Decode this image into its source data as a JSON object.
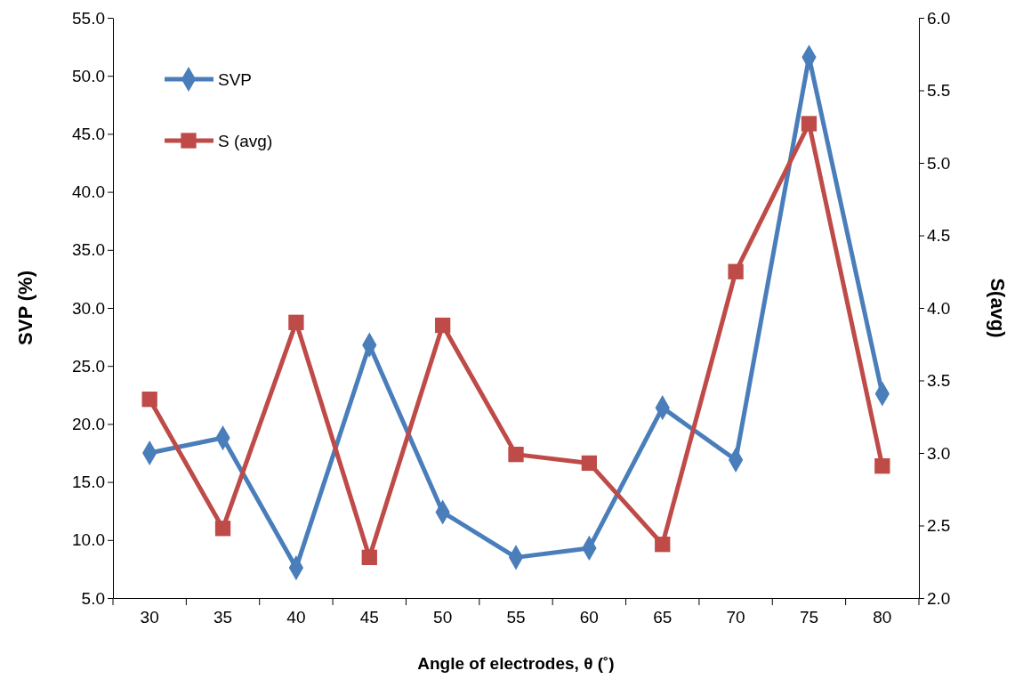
{
  "chart_data": {
    "type": "line",
    "xlabel": "Angle of electrodes, θ (˚)",
    "ylabel": "SVP (%)",
    "y2label": "S(avg)",
    "categories": [
      "30",
      "35",
      "40",
      "45",
      "50",
      "55",
      "60",
      "65",
      "70",
      "75",
      "80"
    ],
    "series": [
      {
        "name": "SVP",
        "color": "#4a7ebb",
        "marker": "diamond",
        "values": [
          17.5,
          18.8,
          7.6,
          26.8,
          12.4,
          8.5,
          9.3,
          21.4,
          16.9,
          51.6,
          22.6
        ]
      },
      {
        "name": "S (avg)",
        "color": "#be4b48",
        "marker": "square",
        "axis": "y2",
        "values": [
          3.37,
          2.48,
          3.9,
          2.28,
          3.88,
          2.99,
          2.93,
          2.37,
          4.25,
          5.27,
          2.91
        ]
      }
    ],
    "ylim": [
      5,
      55
    ],
    "yticks": [
      {
        "value": 5,
        "label": "5.0"
      },
      {
        "value": 10,
        "label": "10.0"
      },
      {
        "value": 15,
        "label": "15.0"
      },
      {
        "value": 20,
        "label": "20.0"
      },
      {
        "value": 25,
        "label": "25.0"
      },
      {
        "value": 30,
        "label": "30.0"
      },
      {
        "value": 35,
        "label": "35.0"
      },
      {
        "value": 40,
        "label": "40.0"
      },
      {
        "value": 45,
        "label": "45.0"
      },
      {
        "value": 50,
        "label": "50.0"
      },
      {
        "value": 55,
        "label": "55.0"
      }
    ],
    "y2lim": [
      2,
      6
    ],
    "y2ticks": [
      {
        "value": 2,
        "label": "2.0"
      },
      {
        "value": 2.5,
        "label": "2.5"
      },
      {
        "value": 3,
        "label": "3.0"
      },
      {
        "value": 3.5,
        "label": "3.5"
      },
      {
        "value": 4,
        "label": "4.0"
      },
      {
        "value": 4.5,
        "label": "4.5"
      },
      {
        "value": 5,
        "label": "5.0"
      },
      {
        "value": 5.5,
        "label": "5.5"
      },
      {
        "value": 6,
        "label": "6.0"
      }
    ],
    "legend": "top left",
    "grid": false,
    "line_style": "solid"
  }
}
